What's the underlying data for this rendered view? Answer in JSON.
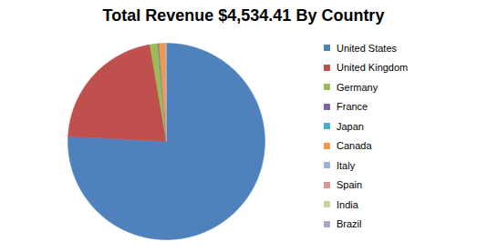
{
  "chart_data": {
    "type": "pie",
    "title": "Total Revenue $4,534.41 By Country",
    "categories": [
      "United States",
      "United Kingdom",
      "Germany",
      "France",
      "Japan",
      "Canada",
      "Italy",
      "Spain",
      "India",
      "Brazil"
    ],
    "values": [
      3437.41,
      975,
      60,
      5,
      4,
      45,
      3,
      2,
      2,
      1
    ],
    "colors": [
      "#4f81bd",
      "#c0504d",
      "#9bbb59",
      "#8064a2",
      "#4bacc6",
      "#f79646",
      "#95b3d7",
      "#d99694",
      "#c3d69b",
      "#b3a2c7"
    ],
    "legend": "right"
  }
}
